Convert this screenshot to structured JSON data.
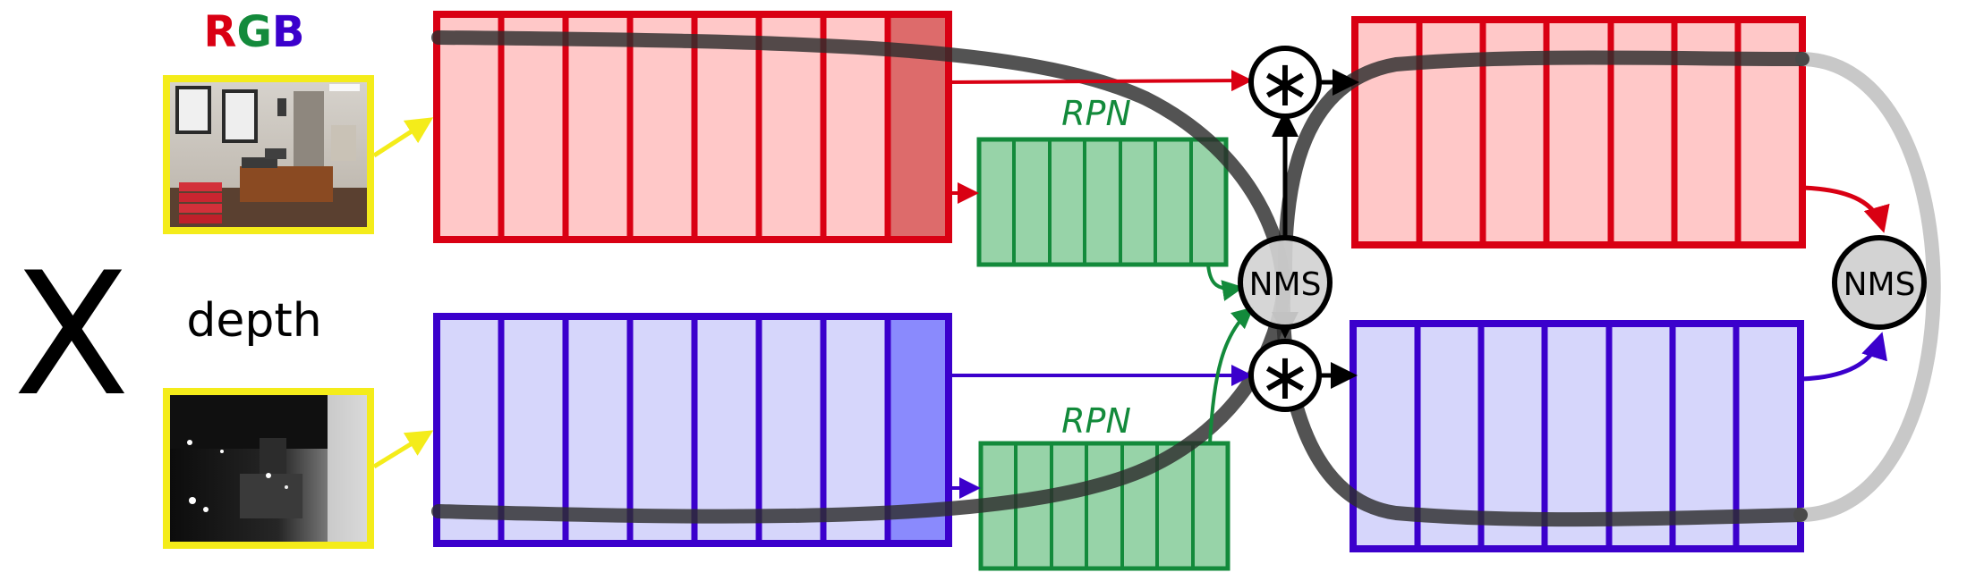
{
  "title": {
    "r": "R",
    "g": "G",
    "b": "B"
  },
  "depth_label": "depth",
  "x_label": "X",
  "rpn_top": "RPN",
  "rpn_bottom": "RPN",
  "nms_center": "NMS",
  "nms_right": "NMS",
  "mult_symbol": "∗",
  "colors": {
    "red": "#d90013",
    "red_fill": "#ffc8c8",
    "red_last": "#dd6b6b",
    "blue": "#3b00cc",
    "blue_fill": "#d6d6fb",
    "blue_last": "#8a8afd",
    "green": "#138a3b",
    "green_fill": "#97d3a8",
    "yellow": "#f4ec1a",
    "path_dark": "#2d2d2d",
    "path_light": "#c8c8c8",
    "nms_fill": "#d3d3d3"
  },
  "icons": {
    "rgb_image": "office-photo",
    "depth_image": "depth-map",
    "multiply": "asterisk",
    "arrow": "arrow-head"
  }
}
